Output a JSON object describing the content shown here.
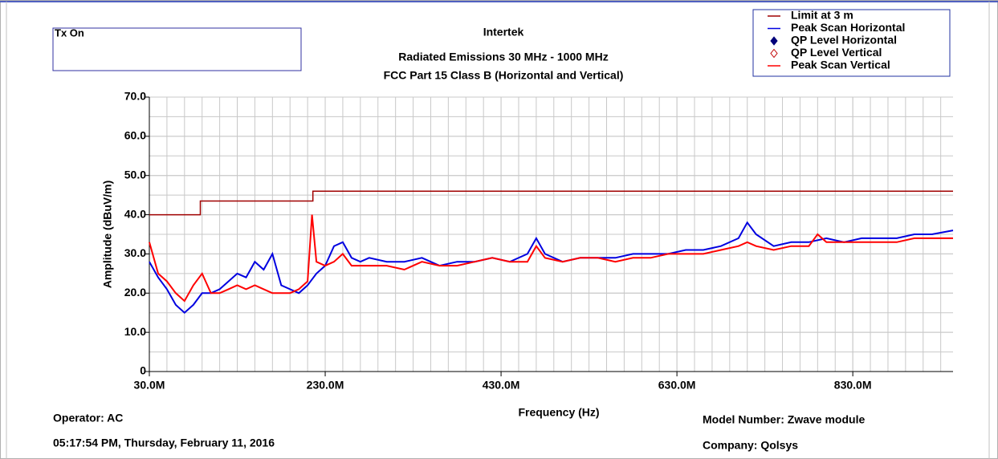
{
  "chart_data": {
    "type": "line",
    "title": "Intertek",
    "subtitle": [
      "Radiated Emissions 30 MHz - 1000 MHz",
      "FCC Part 15 Class B (Horizontal and Vertical)"
    ],
    "box_label": "Tx On",
    "footer": [
      "Operator: AC",
      "05:17:54 PM, Thursday, February 11, 2016",
      "Model Number: Zwave module",
      "Company: Qolsys"
    ],
    "x_label": "Frequency (Hz)",
    "y_label": "Amplitude (dBuV/m)",
    "xlim": [
      30,
      944
    ],
    "ylim": [
      0,
      70
    ],
    "xticks": [
      {
        "value": 30,
        "label": "30.0M"
      },
      {
        "value": 230,
        "label": "230.0M"
      },
      {
        "value": 430,
        "label": "430.0M"
      },
      {
        "value": 630,
        "label": "630.0M"
      },
      {
        "value": 830,
        "label": "830.0M"
      }
    ],
    "yticks": [
      0,
      {
        "value": 10,
        "label": "10.0"
      },
      {
        "value": 20,
        "label": "20.0"
      },
      {
        "value": 30,
        "label": "30.0"
      },
      {
        "value": 40,
        "label": "40.0"
      },
      {
        "value": 50,
        "label": "50.0"
      },
      {
        "value": 60,
        "label": "60.0"
      },
      {
        "value": 70,
        "label": "70.0"
      }
    ],
    "grid": true,
    "legend": "top-right",
    "series": [
      {
        "name": "Limit at 3 m",
        "color": "#a00000",
        "x": [
          30,
          88,
          88,
          216,
          216,
          944
        ],
        "values": [
          40,
          40,
          43.5,
          43.5,
          46,
          46
        ]
      },
      {
        "name": "Peak Scan Horizontal",
        "color": "#0000e0",
        "x": [
          30,
          40,
          50,
          60,
          70,
          80,
          90,
          100,
          110,
          120,
          130,
          140,
          150,
          160,
          170,
          180,
          190,
          200,
          210,
          220,
          230,
          240,
          250,
          260,
          270,
          280,
          300,
          320,
          340,
          360,
          380,
          400,
          420,
          440,
          460,
          470,
          480,
          500,
          520,
          540,
          560,
          580,
          600,
          620,
          640,
          660,
          680,
          700,
          710,
          720,
          740,
          760,
          780,
          800,
          820,
          840,
          860,
          880,
          900,
          920,
          944
        ],
        "values": [
          28,
          24,
          21,
          17,
          15,
          17,
          20,
          20,
          21,
          23,
          25,
          24,
          28,
          26,
          30,
          22,
          21,
          20,
          22,
          25,
          27,
          32,
          33,
          29,
          28,
          29,
          28,
          28,
          29,
          27,
          28,
          28,
          29,
          28,
          30,
          34,
          30,
          28,
          29,
          29,
          29,
          30,
          30,
          30,
          31,
          31,
          32,
          34,
          38,
          35,
          32,
          33,
          33,
          34,
          33,
          34,
          34,
          34,
          35,
          35,
          36
        ]
      },
      {
        "name": "QP Level Horizontal",
        "color": "#00007a",
        "marker": "diamond-filled",
        "x": [],
        "values": []
      },
      {
        "name": "QP Level Vertical",
        "color": "#c00000",
        "marker": "diamond-open",
        "x": [],
        "values": []
      },
      {
        "name": "Peak Scan Vertical",
        "color": "#ff0000",
        "x": [
          30,
          40,
          50,
          60,
          70,
          80,
          90,
          100,
          110,
          120,
          130,
          140,
          150,
          160,
          170,
          180,
          190,
          200,
          210,
          215,
          220,
          230,
          240,
          250,
          260,
          280,
          300,
          320,
          340,
          360,
          380,
          400,
          420,
          440,
          460,
          470,
          480,
          500,
          520,
          540,
          560,
          580,
          600,
          620,
          640,
          660,
          680,
          700,
          710,
          720,
          740,
          760,
          780,
          790,
          800,
          820,
          840,
          860,
          880,
          900,
          920,
          944
        ],
        "values": [
          33,
          25,
          23,
          20,
          18,
          22,
          25,
          20,
          20,
          21,
          22,
          21,
          22,
          21,
          20,
          20,
          20,
          21,
          23,
          40,
          28,
          27,
          28,
          30,
          27,
          27,
          27,
          26,
          28,
          27,
          27,
          28,
          29,
          28,
          28,
          32,
          29,
          28,
          29,
          29,
          28,
          29,
          29,
          30,
          30,
          30,
          31,
          32,
          33,
          32,
          31,
          32,
          32,
          35,
          33,
          33,
          33,
          33,
          33,
          34,
          34,
          34
        ]
      }
    ]
  }
}
